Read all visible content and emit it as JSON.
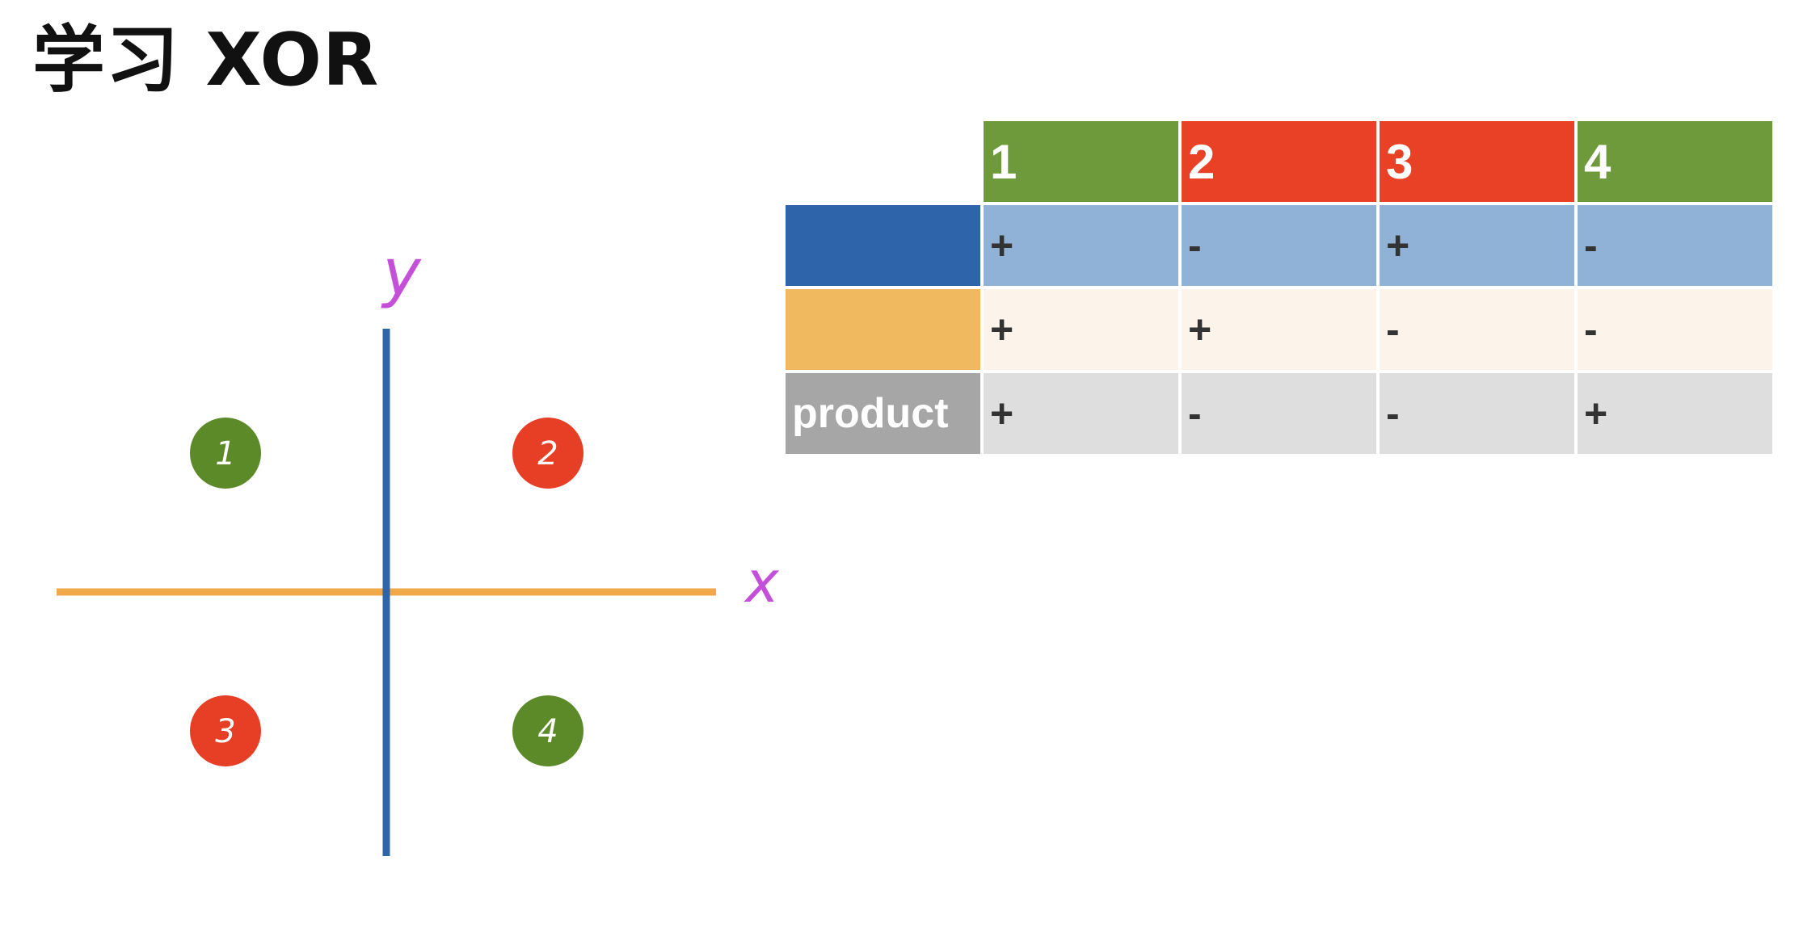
{
  "title": "学习 XOR",
  "colors": {
    "green": "#6e9a3c",
    "red": "#e84125",
    "blue": "#2e64a9",
    "orange": "#f0b85f",
    "gray": "#a6a6a6",
    "light_blue": "#8fb2d6",
    "light_orange": "#fcf3ea",
    "light_gray": "#dedede",
    "axis_label": "#c44fd8",
    "point_green": "#5d8a29",
    "point_red": "#e73e26"
  },
  "axes": {
    "x_label": "x",
    "y_label": "y"
  },
  "points": [
    {
      "label": "1",
      "quadrant": "top-left",
      "color": "green"
    },
    {
      "label": "2",
      "quadrant": "top-right",
      "color": "red"
    },
    {
      "label": "3",
      "quadrant": "bottom-left",
      "color": "red"
    },
    {
      "label": "4",
      "quadrant": "bottom-right",
      "color": "green"
    }
  ],
  "table": {
    "columns": [
      {
        "label": "1",
        "color": "green"
      },
      {
        "label": "2",
        "color": "red"
      },
      {
        "label": "3",
        "color": "red"
      },
      {
        "label": "4",
        "color": "green"
      }
    ],
    "rows": [
      {
        "label": "",
        "label_color": "blue",
        "cell_color": "light_blue",
        "values": [
          "+",
          "-",
          "+",
          "-"
        ]
      },
      {
        "label": "",
        "label_color": "orange",
        "cell_color": "light_orange",
        "values": [
          "+",
          "+",
          "-",
          "-"
        ]
      },
      {
        "label": "product",
        "label_color": "gray",
        "cell_color": "light_gray",
        "values": [
          "+",
          "-",
          "-",
          "+"
        ]
      }
    ]
  }
}
